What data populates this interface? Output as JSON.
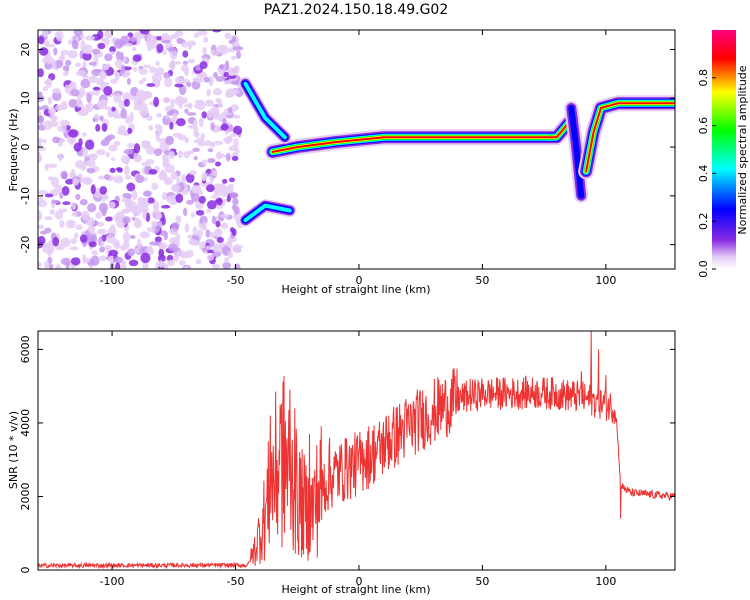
{
  "figure": {
    "title": "PAZ1.2024.150.18.49.G02"
  },
  "chart_data": [
    {
      "type": "heatmap",
      "title": "PAZ1.2024.150.18.49.G02",
      "xlabel": "Height of straight line (km)",
      "ylabel": "Frequency (Hz)",
      "xlim": [
        -130,
        128
      ],
      "ylim": [
        -25,
        24
      ],
      "xticks": [
        -100,
        -50,
        0,
        50,
        100
      ],
      "yticks": [
        -20,
        -10,
        0,
        10,
        20
      ],
      "colorbar": {
        "label": "Normalized spectral amplitude",
        "range": [
          0,
          1
        ],
        "ticks": [
          0.0,
          0.2,
          0.4,
          0.6,
          0.8
        ],
        "colormap": [
          "#ffffff",
          "#e5cdf6",
          "#8a2be2",
          "#0000ff",
          "#00ffff",
          "#00ff00",
          "#ffff00",
          "#ff0000",
          "#ff0080"
        ]
      },
      "features": {
        "noise_region_x": [
          -130,
          -48
        ],
        "main_ridge": [
          [
            -35,
            -1
          ],
          [
            -25,
            0
          ],
          [
            -10,
            1
          ],
          [
            0,
            1.5
          ],
          [
            10,
            2
          ],
          [
            50,
            2
          ],
          [
            80,
            2
          ],
          [
            85,
            5
          ]
        ],
        "upper_branch": [
          [
            -46,
            13
          ],
          [
            -38,
            6
          ],
          [
            -30,
            2
          ]
        ],
        "lower_branch": [
          [
            -46,
            -15
          ],
          [
            -38,
            -12
          ],
          [
            -28,
            -13
          ]
        ],
        "jump_dip": [
          [
            86,
            8
          ],
          [
            88,
            0
          ],
          [
            90,
            -10
          ]
        ],
        "late_ridge": [
          [
            92,
            -5
          ],
          [
            95,
            3
          ],
          [
            98,
            8
          ],
          [
            105,
            9
          ],
          [
            128,
            9
          ]
        ]
      }
    },
    {
      "type": "line",
      "xlabel": "Height of straight line (km)",
      "ylabel": "SNR (10 * v/v)",
      "xlim": [
        -130,
        128
      ],
      "ylim": [
        0,
        6500
      ],
      "xticks": [
        -100,
        -50,
        0,
        50,
        100
      ],
      "yticks": [
        0,
        2000,
        4000,
        6000
      ],
      "color": "#ee3333",
      "envelope": [
        [
          -130,
          120
        ],
        [
          -60,
          130
        ],
        [
          -45,
          130
        ],
        [
          -42,
          600
        ],
        [
          -38,
          1500
        ],
        [
          -35,
          2500
        ],
        [
          -30,
          3000
        ],
        [
          -25,
          2000
        ],
        [
          -20,
          1500
        ],
        [
          -15,
          2300
        ],
        [
          -10,
          2600
        ],
        [
          0,
          2900
        ],
        [
          10,
          3400
        ],
        [
          20,
          3900
        ],
        [
          30,
          4300
        ],
        [
          40,
          4650
        ],
        [
          50,
          4800
        ],
        [
          60,
          4800
        ],
        [
          70,
          4820
        ],
        [
          80,
          4800
        ],
        [
          90,
          4700
        ],
        [
          95,
          4600
        ],
        [
          100,
          4500
        ],
        [
          104,
          4400
        ],
        [
          106,
          2300
        ],
        [
          110,
          2100
        ],
        [
          128,
          2000
        ]
      ],
      "spikes": [
        [
          -36,
          4200
        ],
        [
          -32,
          4500
        ],
        [
          -28,
          4900
        ],
        [
          -26,
          4400
        ],
        [
          -20,
          3700
        ],
        [
          -12,
          3600
        ],
        [
          -5,
          3500
        ],
        [
          2,
          3300
        ],
        [
          8,
          3800
        ],
        [
          12,
          4200
        ],
        [
          25,
          4600
        ],
        [
          30,
          4400
        ],
        [
          45,
          5200
        ],
        [
          90,
          5400
        ],
        [
          94,
          6500
        ],
        [
          97,
          6000
        ],
        [
          100,
          5300
        ],
        [
          106,
          1400
        ]
      ]
    }
  ]
}
